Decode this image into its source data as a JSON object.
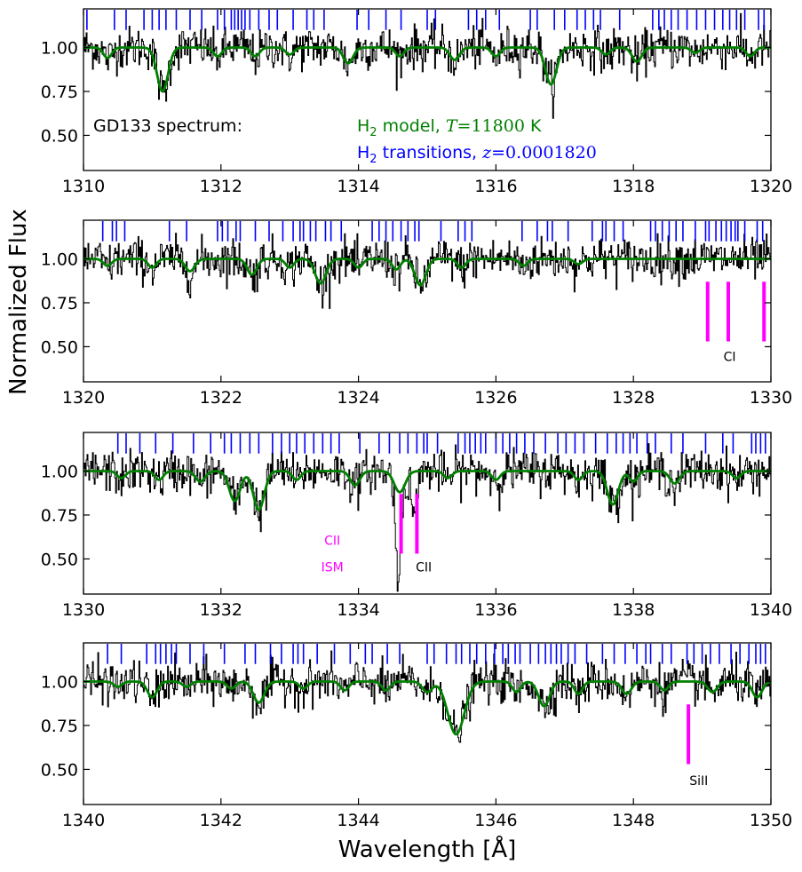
{
  "chart_data": {
    "type": "line",
    "xlabel": "Wavelength [Å]",
    "ylabel": "Normalized Flux",
    "text": {
      "spectrum": "GD133 spectrum:",
      "model": "H2 model, T=11800 K",
      "model_parts": [
        "H",
        "2",
        " model, ",
        "T",
        "=11800",
        " K"
      ],
      "transitions": "H2 transitions, z=0.0001820",
      "transitions_parts": [
        "H",
        "2",
        " transitions, ",
        "z",
        "=0.0001820"
      ]
    },
    "colors": {
      "spectrum": "#000000",
      "model": "#008000",
      "h2_transitions": "#0000ff",
      "metal_lines": "#ff00ff"
    },
    "panels": [
      {
        "xlim": [
          1310,
          1320
        ],
        "ylim": [
          0.3,
          1.22
        ],
        "xticks": [
          1310,
          1312,
          1314,
          1316,
          1318,
          1320
        ],
        "yticks": [
          0.5,
          0.75,
          1.0
        ],
        "ytick_labels": [
          "0.50",
          "0.75",
          "1.00"
        ],
        "h2_lines": [
          1310.05,
          1310.45,
          1310.62,
          1310.88,
          1311.0,
          1311.1,
          1311.2,
          1311.35,
          1311.55,
          1311.72,
          1311.95,
          1312.05,
          1312.15,
          1312.2,
          1312.25,
          1312.3,
          1312.35,
          1312.42,
          1312.55,
          1312.7,
          1312.82,
          1313.05,
          1313.25,
          1313.35,
          1313.5,
          1313.98,
          1314.15,
          1314.4,
          1314.62,
          1315.0,
          1315.12,
          1315.6,
          1315.72,
          1315.85,
          1316.05,
          1316.5,
          1316.6,
          1316.85,
          1317.0,
          1317.18,
          1317.3,
          1317.42,
          1317.52,
          1317.8,
          1318.28,
          1318.37,
          1318.45,
          1318.55,
          1318.65,
          1318.78,
          1318.92,
          1319.05,
          1319.18,
          1319.3,
          1319.4,
          1319.5,
          1319.62,
          1319.82,
          1319.9
        ],
        "model_dips": [
          {
            "x": 1311.15,
            "depth": 0.25,
            "width": 0.08
          },
          {
            "x": 1310.35,
            "depth": 0.06,
            "width": 0.06
          },
          {
            "x": 1311.95,
            "depth": 0.05,
            "width": 0.06
          },
          {
            "x": 1312.5,
            "depth": 0.05,
            "width": 0.06
          },
          {
            "x": 1313.0,
            "depth": 0.04,
            "width": 0.06
          },
          {
            "x": 1313.85,
            "depth": 0.09,
            "width": 0.07
          },
          {
            "x": 1314.6,
            "depth": 0.05,
            "width": 0.06
          },
          {
            "x": 1315.4,
            "depth": 0.07,
            "width": 0.07
          },
          {
            "x": 1316.0,
            "depth": 0.05,
            "width": 0.06
          },
          {
            "x": 1316.8,
            "depth": 0.21,
            "width": 0.08
          },
          {
            "x": 1317.6,
            "depth": 0.04,
            "width": 0.06
          },
          {
            "x": 1318.05,
            "depth": 0.08,
            "width": 0.07
          },
          {
            "x": 1318.9,
            "depth": 0.03,
            "width": 0.06
          },
          {
            "x": 1319.7,
            "depth": 0.05,
            "width": 0.06
          }
        ],
        "metal_lines": [],
        "labels": []
      },
      {
        "xlim": [
          1320,
          1330
        ],
        "ylim": [
          0.3,
          1.22
        ],
        "xticks": [
          1320,
          1322,
          1324,
          1326,
          1328,
          1330
        ],
        "yticks": [
          0.5,
          0.75,
          1.0
        ],
        "ytick_labels": [
          "0.50",
          "0.75",
          "1.00"
        ],
        "h2_lines": [
          1320.28,
          1320.42,
          1320.48,
          1320.6,
          1321.25,
          1321.5,
          1321.95,
          1322.02,
          1322.1,
          1322.22,
          1322.28,
          1322.5,
          1322.7,
          1322.9,
          1323.05,
          1323.15,
          1323.2,
          1323.3,
          1323.38,
          1323.52,
          1323.6,
          1323.75,
          1324.2,
          1324.3,
          1324.4,
          1324.5,
          1324.62,
          1324.72,
          1324.82,
          1324.88,
          1325.2,
          1325.45,
          1325.55,
          1325.65,
          1326.38,
          1326.6,
          1326.75,
          1326.82,
          1327.05,
          1327.4,
          1327.55,
          1327.6,
          1327.72,
          1327.85,
          1328.25,
          1328.32,
          1328.42,
          1328.52,
          1328.62,
          1328.72,
          1328.9,
          1329.05,
          1329.1,
          1329.2,
          1329.28,
          1329.35,
          1329.42,
          1329.48,
          1329.52,
          1329.62,
          1329.8,
          1329.88
        ],
        "model_dips": [
          {
            "x": 1320.35,
            "depth": 0.04,
            "width": 0.06
          },
          {
            "x": 1321.0,
            "depth": 0.05,
            "width": 0.06
          },
          {
            "x": 1321.55,
            "depth": 0.07,
            "width": 0.07
          },
          {
            "x": 1322.45,
            "depth": 0.09,
            "width": 0.07
          },
          {
            "x": 1323.0,
            "depth": 0.05,
            "width": 0.06
          },
          {
            "x": 1323.45,
            "depth": 0.14,
            "width": 0.08
          },
          {
            "x": 1324.0,
            "depth": 0.05,
            "width": 0.06
          },
          {
            "x": 1324.55,
            "depth": 0.06,
            "width": 0.06
          },
          {
            "x": 1324.9,
            "depth": 0.15,
            "width": 0.08
          },
          {
            "x": 1325.5,
            "depth": 0.05,
            "width": 0.06
          },
          {
            "x": 1326.4,
            "depth": 0.04,
            "width": 0.06
          },
          {
            "x": 1327.2,
            "depth": 0.03,
            "width": 0.06
          }
        ],
        "metal_lines": [
          {
            "x": 1329.08,
            "ytop": 0.87,
            "ybottom": 0.53
          },
          {
            "x": 1329.38,
            "ytop": 0.87,
            "ybottom": 0.53
          },
          {
            "x": 1329.9,
            "ytop": 0.87,
            "ybottom": 0.53
          }
        ],
        "labels": [
          {
            "text": "CI",
            "x": 1329.4,
            "y": 0.42,
            "color": "#000000"
          }
        ]
      },
      {
        "xlim": [
          1330,
          1340
        ],
        "ylim": [
          0.3,
          1.22
        ],
        "xticks": [
          1330,
          1332,
          1334,
          1336,
          1338,
          1340
        ],
        "yticks": [
          0.5,
          0.75,
          1.0
        ],
        "ytick_labels": [
          "0.50",
          "0.75",
          "1.00"
        ],
        "h2_lines": [
          1330.5,
          1330.62,
          1330.82,
          1331.05,
          1331.3,
          1331.6,
          1331.85,
          1332.05,
          1332.15,
          1332.28,
          1332.42,
          1332.55,
          1332.75,
          1332.88,
          1333.0,
          1333.1,
          1333.22,
          1333.35,
          1333.48,
          1333.6,
          1333.72,
          1334.02,
          1334.3,
          1334.45,
          1334.6,
          1334.72,
          1334.85,
          1334.95,
          1335.0,
          1335.15,
          1335.45,
          1335.55,
          1335.62,
          1335.7,
          1335.78,
          1335.85,
          1336.0,
          1336.1,
          1336.2,
          1336.3,
          1336.42,
          1336.55,
          1336.72,
          1336.9,
          1337.02,
          1337.15,
          1337.28,
          1337.45,
          1337.62,
          1337.75,
          1337.85,
          1337.95,
          1338.05,
          1338.2,
          1338.32,
          1338.55,
          1338.72,
          1339.05,
          1339.3,
          1339.45,
          1339.72,
          1339.78,
          1339.85,
          1339.92
        ],
        "model_dips": [
          {
            "x": 1330.55,
            "depth": 0.04,
            "width": 0.06
          },
          {
            "x": 1331.1,
            "depth": 0.05,
            "width": 0.06
          },
          {
            "x": 1331.7,
            "depth": 0.06,
            "width": 0.07
          },
          {
            "x": 1332.2,
            "depth": 0.17,
            "width": 0.08
          },
          {
            "x": 1332.55,
            "depth": 0.22,
            "width": 0.08
          },
          {
            "x": 1333.1,
            "depth": 0.05,
            "width": 0.06
          },
          {
            "x": 1333.95,
            "depth": 0.08,
            "width": 0.07
          },
          {
            "x": 1334.6,
            "depth": 0.12,
            "width": 0.08
          },
          {
            "x": 1335.3,
            "depth": 0.04,
            "width": 0.06
          },
          {
            "x": 1336.0,
            "depth": 0.05,
            "width": 0.06
          },
          {
            "x": 1337.2,
            "depth": 0.05,
            "width": 0.06
          },
          {
            "x": 1337.7,
            "depth": 0.19,
            "width": 0.08
          },
          {
            "x": 1338.0,
            "depth": 0.06,
            "width": 0.06
          },
          {
            "x": 1338.6,
            "depth": 0.07,
            "width": 0.07
          },
          {
            "x": 1339.5,
            "depth": 0.04,
            "width": 0.06
          }
        ],
        "metal_lines": [
          {
            "x": 1334.62,
            "ytop": 0.87,
            "ybottom": 0.53
          },
          {
            "x": 1334.85,
            "ytop": 0.87,
            "ybottom": 0.53
          }
        ],
        "labels": [
          {
            "text": "CII",
            "x": 1333.62,
            "y": 0.58,
            "color": "#ff00ff"
          },
          {
            "text": "ISM",
            "x": 1333.62,
            "y": 0.43,
            "color": "#ff00ff"
          },
          {
            "text": "CII",
            "x": 1334.95,
            "y": 0.43,
            "color": "#000000"
          }
        ]
      },
      {
        "xlim": [
          1340,
          1350
        ],
        "ylim": [
          0.3,
          1.22
        ],
        "xticks": [
          1340,
          1342,
          1344,
          1346,
          1348,
          1350
        ],
        "yticks": [
          0.5,
          0.75,
          1.0
        ],
        "ytick_labels": [
          "0.50",
          "0.75",
          "1.00"
        ],
        "h2_lines": [
          1340.35,
          1340.55,
          1340.92,
          1341.05,
          1341.12,
          1341.2,
          1341.28,
          1341.35,
          1341.55,
          1341.75,
          1342.05,
          1342.35,
          1342.5,
          1342.72,
          1342.88,
          1343.05,
          1343.12,
          1343.2,
          1343.4,
          1343.65,
          1343.88,
          1344.1,
          1344.2,
          1344.42,
          1344.6,
          1345.0,
          1345.1,
          1345.28,
          1345.42,
          1345.5,
          1345.62,
          1345.72,
          1345.85,
          1345.98,
          1346.1,
          1346.18,
          1346.28,
          1346.35,
          1346.5,
          1346.62,
          1346.72,
          1346.8,
          1346.88,
          1346.95,
          1347.05,
          1347.15,
          1347.32,
          1347.55,
          1347.72,
          1347.88,
          1348.05,
          1348.18,
          1348.25,
          1348.42,
          1348.55,
          1348.78,
          1348.88,
          1349.0,
          1349.12,
          1349.25,
          1349.42,
          1349.55,
          1349.68,
          1349.78,
          1349.85,
          1349.92
        ],
        "model_dips": [
          {
            "x": 1340.5,
            "depth": 0.03,
            "width": 0.06
          },
          {
            "x": 1341.0,
            "depth": 0.09,
            "width": 0.07
          },
          {
            "x": 1341.5,
            "depth": 0.03,
            "width": 0.06
          },
          {
            "x": 1342.15,
            "depth": 0.04,
            "width": 0.06
          },
          {
            "x": 1342.55,
            "depth": 0.12,
            "width": 0.08
          },
          {
            "x": 1343.2,
            "depth": 0.04,
            "width": 0.06
          },
          {
            "x": 1343.8,
            "depth": 0.05,
            "width": 0.06
          },
          {
            "x": 1344.4,
            "depth": 0.05,
            "width": 0.06
          },
          {
            "x": 1345.0,
            "depth": 0.06,
            "width": 0.07
          },
          {
            "x": 1345.42,
            "depth": 0.3,
            "width": 0.12
          },
          {
            "x": 1346.3,
            "depth": 0.06,
            "width": 0.06
          },
          {
            "x": 1346.7,
            "depth": 0.14,
            "width": 0.08
          },
          {
            "x": 1347.2,
            "depth": 0.07,
            "width": 0.06
          },
          {
            "x": 1347.9,
            "depth": 0.07,
            "width": 0.07
          },
          {
            "x": 1348.45,
            "depth": 0.05,
            "width": 0.06
          },
          {
            "x": 1349.15,
            "depth": 0.06,
            "width": 0.07
          },
          {
            "x": 1349.8,
            "depth": 0.09,
            "width": 0.07
          }
        ],
        "metal_lines": [
          {
            "x": 1348.8,
            "ytop": 0.87,
            "ybottom": 0.53
          }
        ],
        "labels": [
          {
            "text": "SiII",
            "x": 1348.95,
            "y": 0.41,
            "color": "#000000"
          }
        ]
      }
    ]
  }
}
